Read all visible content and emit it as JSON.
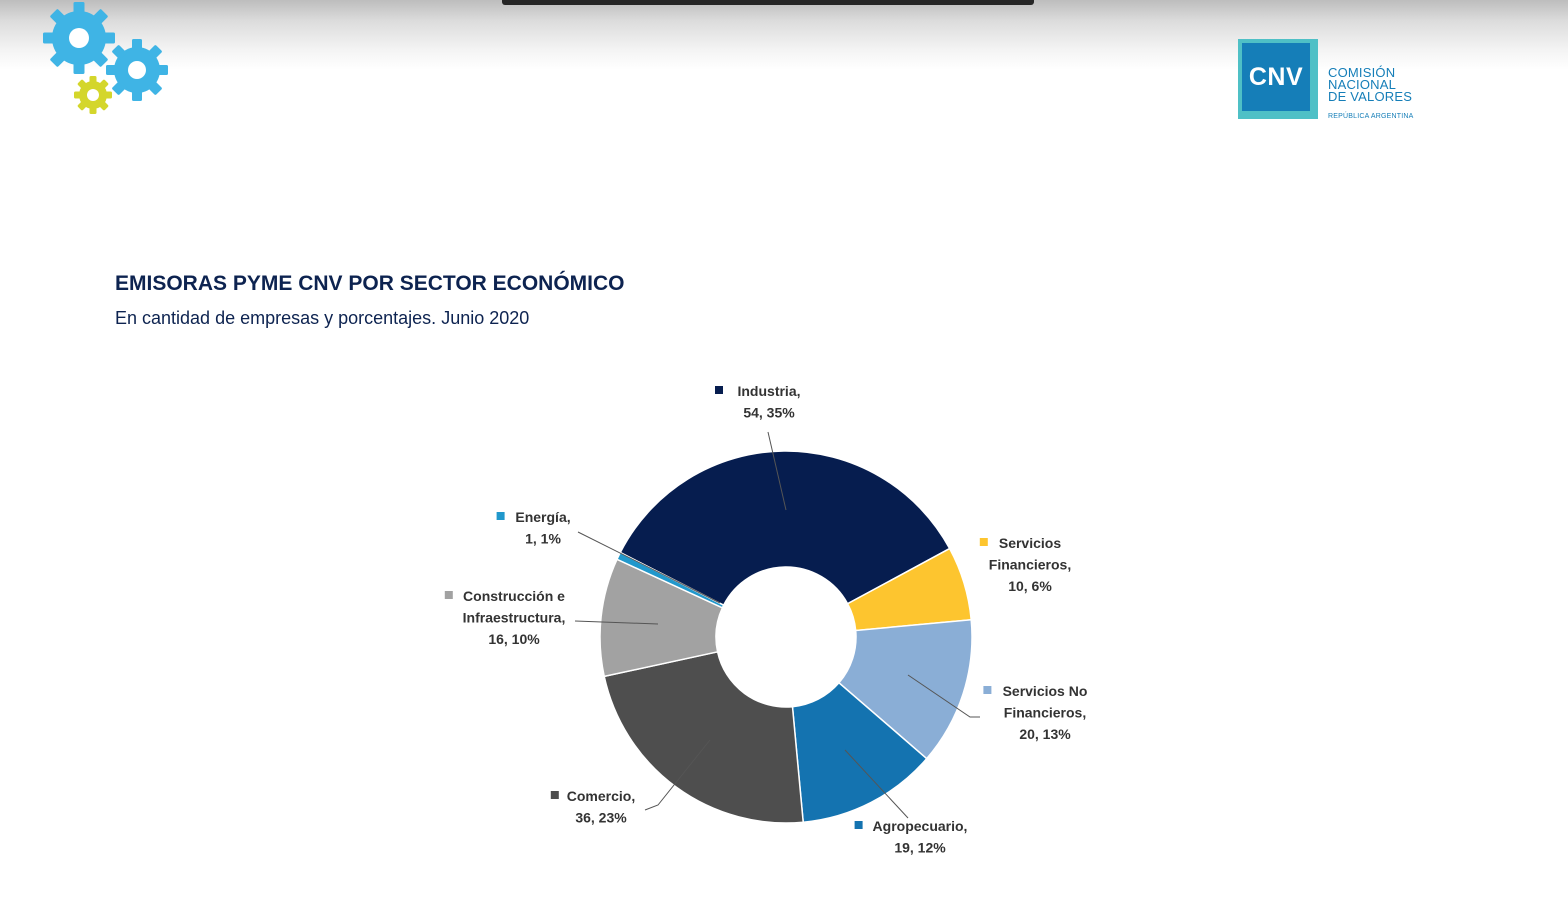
{
  "header": {
    "gears_icon": "gears-icon",
    "logo": {
      "acronym": "CNV",
      "line1": "COMISIÓN",
      "line2": "NACIONAL",
      "line3": "DE VALORES",
      "country": "REPÚBLICA ARGENTINA",
      "colors": {
        "primary": "#157eb8",
        "border": "#4fc0c6"
      }
    }
  },
  "title": "EMISORAS PYME CNV POR SECTOR ECONÓMICO",
  "subtitle": "En cantidad de empresas y porcentajes. Junio 2020",
  "chart_data": {
    "type": "pie",
    "variant": "donut",
    "title": "EMISORAS PYME CNV POR SECTOR ECONÓMICO",
    "subtitle": "En cantidad de empresas y porcentajes. Junio 2020",
    "legend": "none",
    "slices": [
      {
        "label": "Industria",
        "value": 54,
        "percent": "35%",
        "color": "#061d4f",
        "label_lines": [
          "Industria,",
          "54, 35%"
        ]
      },
      {
        "label": "Servicios Financieros",
        "value": 10,
        "percent": "6%",
        "color": "#fdc52f",
        "label_lines": [
          "Servicios",
          "Financieros,",
          "10, 6%"
        ]
      },
      {
        "label": "Servicios No Financieros",
        "value": 20,
        "percent": "13%",
        "color": "#8aaed6",
        "label_lines": [
          "Servicios No",
          "Financieros,",
          "20, 13%"
        ]
      },
      {
        "label": "Agropecuario",
        "value": 19,
        "percent": "12%",
        "color": "#1473b0",
        "label_lines": [
          "Agropecuario,",
          "19, 12%"
        ]
      },
      {
        "label": "Comercio",
        "value": 36,
        "percent": "23%",
        "color": "#4e4e4e",
        "label_lines": [
          "Comercio,",
          "36, 23%"
        ]
      },
      {
        "label": "Construcción e Infraestructura",
        "value": 16,
        "percent": "10%",
        "color": "#a2a2a2",
        "label_lines": [
          "Construcción e",
          "Infraestructura,",
          "16, 10%"
        ]
      },
      {
        "label": "Energía",
        "value": 1,
        "percent": "1%",
        "color": "#2198cc",
        "label_lines": [
          "Energía,",
          "1, 1%"
        ]
      }
    ]
  }
}
